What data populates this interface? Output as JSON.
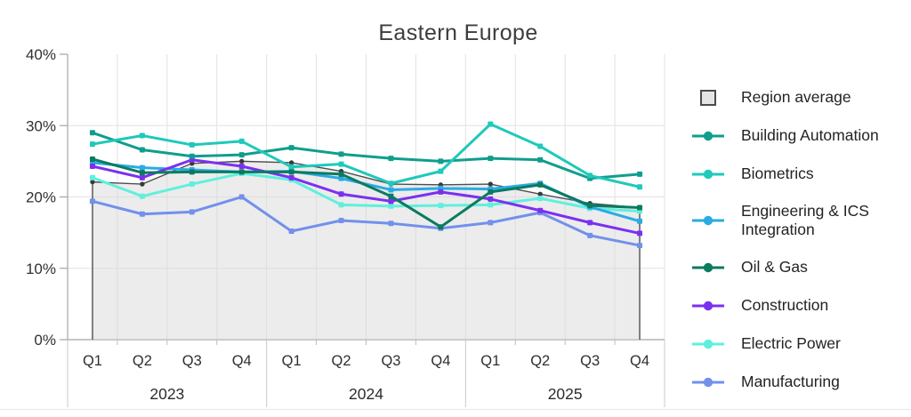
{
  "chart_data": {
    "type": "line",
    "title": "Eastern Europe",
    "xlabel": "",
    "ylabel": "",
    "ylim": [
      0,
      40
    ],
    "y_ticks": [
      "0%",
      "10%",
      "20%",
      "30%",
      "40%"
    ],
    "y_tick_values": [
      0,
      10,
      20,
      30,
      40
    ],
    "grid": true,
    "legend_position": "right",
    "x": {
      "quarters": [
        "Q1",
        "Q2",
        "Q3",
        "Q4",
        "Q1",
        "Q2",
        "Q3",
        "Q4",
        "Q1",
        "Q2",
        "Q3",
        "Q4"
      ],
      "year_groups": [
        {
          "label": "2023",
          "span": 4
        },
        {
          "label": "2024",
          "span": 4
        },
        {
          "label": "2025",
          "span": 4
        }
      ]
    },
    "series": [
      {
        "name": "Region average",
        "type": "area",
        "legend_marker": "square",
        "color": "#4e4e4e",
        "fill": "#d9d9d9",
        "values": [
          22.1,
          21.8,
          24.7,
          25.0,
          24.8,
          23.6,
          21.8,
          21.7,
          21.8,
          20.4,
          19.1,
          18.5
        ]
      },
      {
        "name": "Building Automation",
        "type": "line",
        "legend_marker": "line-dot",
        "color": "#0f9e8d",
        "values": [
          29.0,
          26.6,
          25.7,
          25.9,
          26.9,
          26.0,
          25.4,
          25.0,
          25.4,
          25.2,
          22.6,
          23.2
        ]
      },
      {
        "name": "Biometrics",
        "type": "line",
        "legend_marker": "line-dot",
        "color": "#1fc9bb",
        "values": [
          27.4,
          28.6,
          27.3,
          27.8,
          24.2,
          24.6,
          21.9,
          23.6,
          30.2,
          27.1,
          23.0,
          21.4
        ]
      },
      {
        "name": "Engineering & ICS Integration",
        "type": "line",
        "legend_marker": "line-dot",
        "color": "#2aabe4",
        "values": [
          24.8,
          24.1,
          23.8,
          23.5,
          23.6,
          22.6,
          21.0,
          21.2,
          21.1,
          21.9,
          18.6,
          16.6
        ]
      },
      {
        "name": "Oil & Gas",
        "type": "line",
        "legend_marker": "line-dot",
        "color": "#0b7b60",
        "values": [
          25.3,
          23.4,
          23.5,
          23.5,
          23.5,
          23.2,
          20.1,
          15.8,
          20.7,
          21.7,
          18.8,
          18.5
        ]
      },
      {
        "name": "Construction",
        "type": "line",
        "legend_marker": "line-dot",
        "color": "#7b30f0",
        "values": [
          24.3,
          22.7,
          25.2,
          24.3,
          22.7,
          20.4,
          19.4,
          20.7,
          19.7,
          18.1,
          16.4,
          14.9
        ]
      },
      {
        "name": "Electric Power",
        "type": "line",
        "legend_marker": "line-dot",
        "color": "#5ff0dd",
        "values": [
          22.7,
          20.1,
          21.8,
          23.3,
          22.4,
          18.9,
          18.7,
          18.8,
          18.9,
          19.8,
          18.4,
          18.0
        ]
      },
      {
        "name": "Manufacturing",
        "type": "line",
        "legend_marker": "line-dot",
        "color": "#7290ec",
        "values": [
          19.4,
          17.6,
          17.9,
          20.0,
          15.2,
          16.7,
          16.3,
          15.6,
          16.4,
          17.8,
          14.6,
          13.2
        ]
      }
    ]
  }
}
